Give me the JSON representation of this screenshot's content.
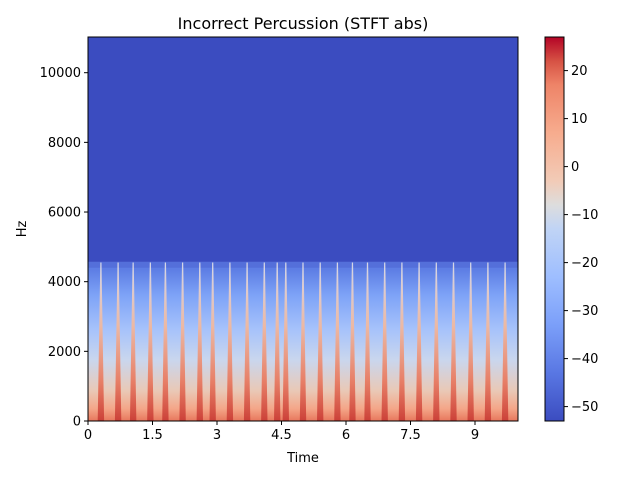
{
  "chart_data": {
    "type": "heatmap",
    "title": "Incorrect Percussion (STFT abs)",
    "xlabel": "Time",
    "ylabel": "Hz",
    "xlim": [
      0,
      10.0
    ],
    "ylim": [
      0,
      11025
    ],
    "x_ticks": [
      0,
      1.5,
      3,
      4.5,
      6,
      7.5,
      9
    ],
    "x_tick_labels": [
      "0",
      "1.5",
      "3",
      "4.5",
      "6",
      "7.5",
      "9"
    ],
    "y_ticks": [
      0,
      2000,
      4000,
      6000,
      8000,
      10000
    ],
    "y_tick_labels": [
      "0",
      "2000",
      "4000",
      "6000",
      "8000",
      "10000"
    ],
    "energy_cutoff_hz": 4400,
    "onset_times": [
      0.3,
      0.7,
      1.05,
      1.45,
      1.8,
      2.2,
      2.6,
      2.9,
      3.3,
      3.7,
      4.1,
      4.4,
      4.6,
      5.0,
      5.4,
      5.8,
      6.15,
      6.5,
      6.9,
      7.3,
      7.7,
      8.1,
      8.5,
      8.9,
      9.3,
      9.7
    ],
    "colorbar": {
      "min": -53,
      "max": 27,
      "ticks": [
        20,
        10,
        0,
        -10,
        -20,
        -30,
        -40,
        -50
      ],
      "tick_labels": [
        "20",
        "10",
        "0",
        "−10",
        "−20",
        "−30",
        "−40",
        "−50"
      ],
      "colormap": "coolwarm",
      "color_low": "#3b4cc0",
      "color_mid": "#dddddd",
      "color_high": "#b40426"
    }
  }
}
